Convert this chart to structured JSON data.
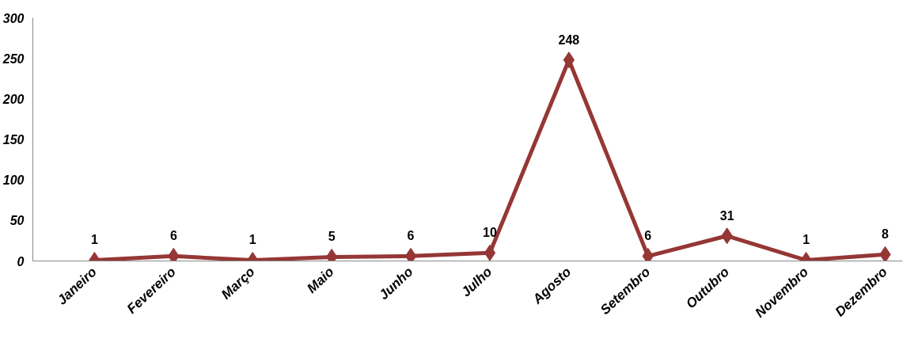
{
  "chart_data": {
    "type": "line",
    "categories": [
      "Janeiro",
      "Fevereiro",
      "Março",
      "Maio",
      "Junho",
      "Julho",
      "Agosto",
      "Setembro",
      "Outubro",
      "Novembro",
      "Dezembro"
    ],
    "series": [
      {
        "color": "#953735",
        "values": [
          1,
          6,
          1,
          5,
          6,
          10,
          248,
          6,
          31,
          1,
          8
        ]
      }
    ],
    "ylim": [
      0,
      300
    ],
    "yticks": [
      0,
      50,
      100,
      150,
      200,
      250,
      300
    ],
    "grid": false,
    "marker": "diamond",
    "line_style": "solid",
    "data_labels": true
  }
}
